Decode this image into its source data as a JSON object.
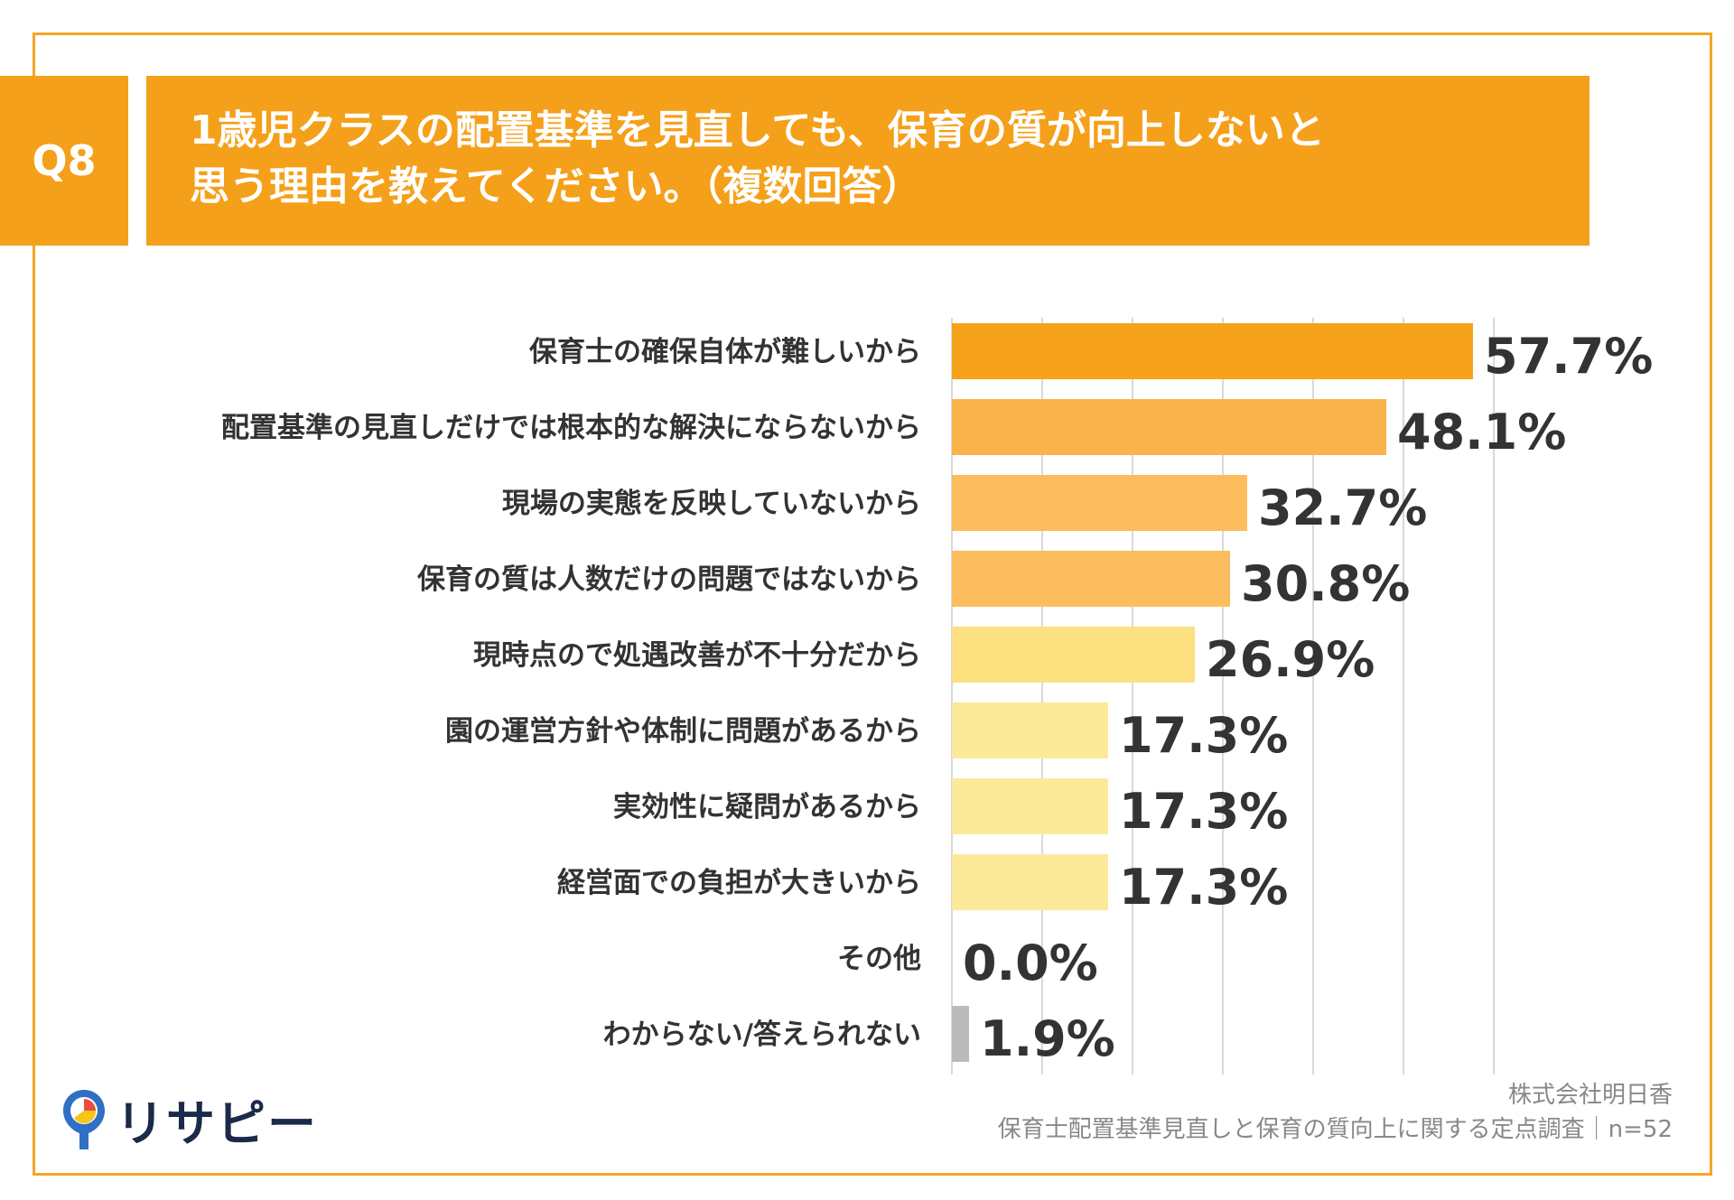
{
  "question": {
    "number": "Q8",
    "title_line1": "1歳児クラスの配置基準を見直しても、保育の質が向上しないと",
    "title_line2": "思う理由を教えてください。（複数回答）"
  },
  "chart_data": {
    "type": "bar",
    "orientation": "horizontal",
    "categories": [
      "保育士の確保自体が難しいから",
      "配置基準の見直しだけでは根本的な解決にならないから",
      "現場の実態を反映していないから",
      "保育の質は人数だけの問題ではないから",
      "現時点ので処遇改善が不十分だから",
      "園の運営方針や体制に問題があるから",
      "実効性に疑問があるから",
      "経営面での負担が大きいから",
      "その他",
      "わからない/答えられない"
    ],
    "values": [
      57.7,
      48.1,
      32.7,
      30.8,
      26.9,
      17.3,
      17.3,
      17.3,
      0.0,
      1.9
    ],
    "value_labels": [
      "57.7%",
      "48.1%",
      "32.7%",
      "30.8%",
      "26.9%",
      "17.3%",
      "17.3%",
      "17.3%",
      "0.0%",
      "1.9%"
    ],
    "colors": [
      "#f7a21b",
      "#f9b34a",
      "#fbbd5e",
      "#fbbd5e",
      "#fde07f",
      "#fde99a",
      "#fde99a",
      "#fde99a",
      "#fde99a",
      "#bbbbbb"
    ],
    "xlim": [
      0,
      60
    ],
    "grid": true
  },
  "footer": {
    "company": "株式会社明日香",
    "survey": "保育士配置基準見直しと保育の質向上に関する定点調査｜n=52"
  },
  "logo": {
    "text": "リサピー",
    "icon": "pin-icon"
  }
}
